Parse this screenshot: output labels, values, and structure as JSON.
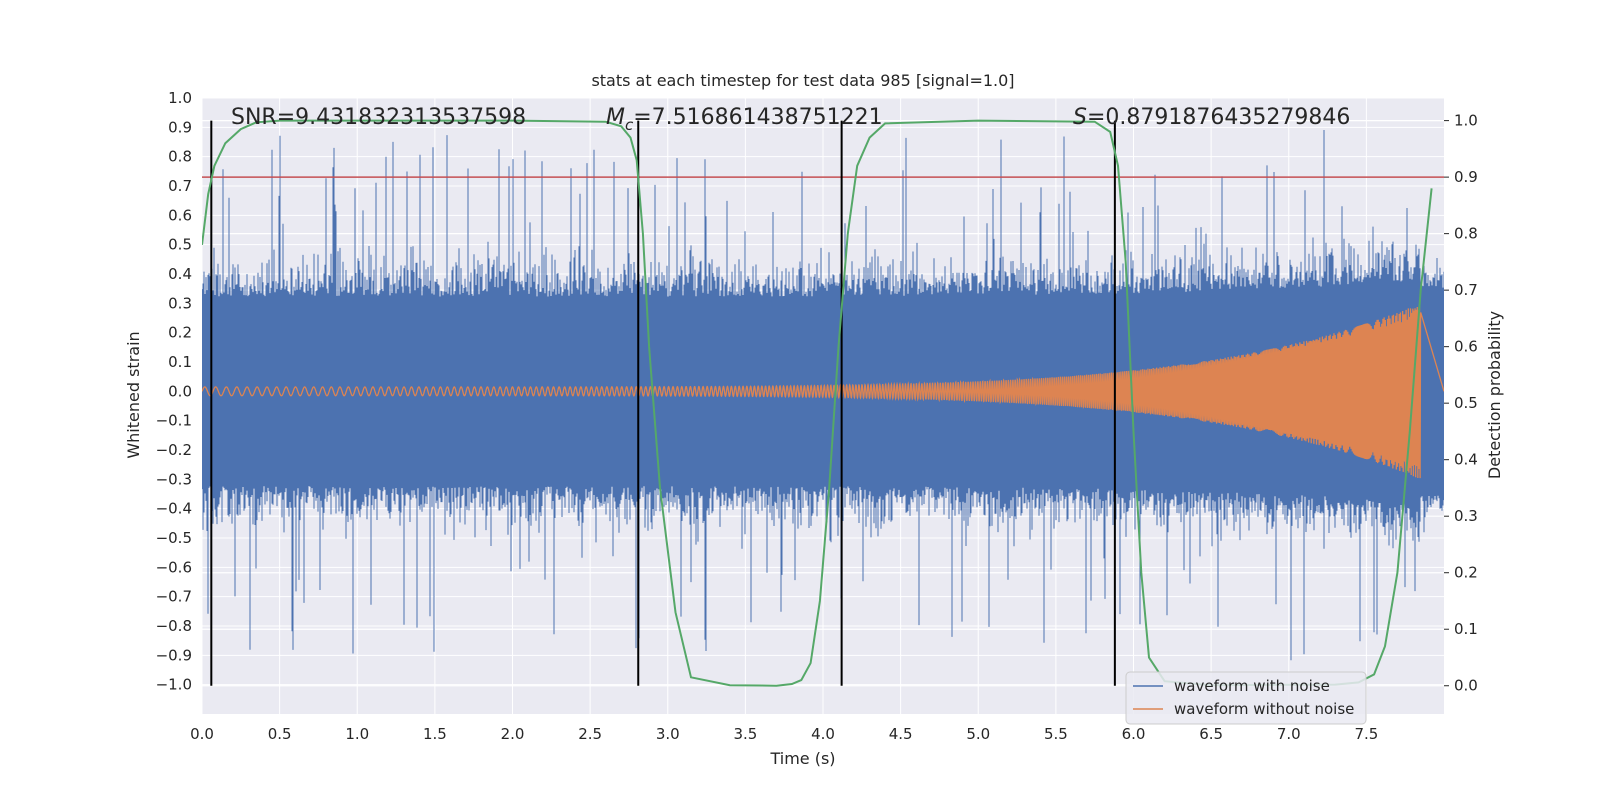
{
  "chart_data": {
    "type": "line",
    "title": "stats at each timestep for test data 985 [signal=1.0]",
    "xlabel": "Time (s)",
    "ylabel": "Whitened strain",
    "y2label": "Detection probability",
    "xlim": [
      0,
      8
    ],
    "ylim": [
      -1.1,
      1.0
    ],
    "y2lim": [
      -0.05,
      1.04
    ],
    "xticks": [
      "0.0",
      "0.5",
      "1.0",
      "1.5",
      "2.0",
      "2.5",
      "3.0",
      "3.5",
      "4.0",
      "4.5",
      "5.0",
      "5.5",
      "6.0",
      "6.5",
      "7.0",
      "7.5"
    ],
    "yticks": [
      "1.0",
      "0.9",
      "0.8",
      "0.7",
      "0.6",
      "0.5",
      "0.4",
      "0.3",
      "0.2",
      "0.1",
      "0.0",
      "−0.1",
      "−0.2",
      "−0.3",
      "−0.4",
      "−0.5",
      "−0.6",
      "−0.7",
      "−0.8",
      "−0.9",
      "−1.0"
    ],
    "y2ticks": [
      "1.0",
      "0.9",
      "0.8",
      "0.7",
      "0.6",
      "0.5",
      "0.4",
      "0.3",
      "0.2",
      "0.1",
      "0.0"
    ],
    "annotations": {
      "snr": "SNR=9.431832313537598",
      "mc_symbol": "M",
      "mc_sub": "c",
      "mc_value": "=7.516861438751221",
      "s_symbol": "S",
      "s_value": "=0.8791876435279846"
    },
    "threshold": 0.9,
    "vertical_lines": [
      0.06,
      2.81,
      4.12,
      5.88
    ],
    "series": [
      {
        "name": "waveform with noise",
        "color": "#4c72b0",
        "noise_envelope": 0.32,
        "spike_max": 0.92,
        "chirp_amp_end": 0.3,
        "duration": 7.85
      },
      {
        "name": "waveform without noise",
        "color": "#dd8452",
        "amp_start": 0.015,
        "amp_end": 0.3,
        "duration": 7.85
      },
      {
        "name": "detection probability",
        "color": "#55a868",
        "x": [
          0.0,
          0.04,
          0.08,
          0.15,
          0.25,
          0.35,
          0.5,
          1.0,
          2.0,
          2.6,
          2.7,
          2.76,
          2.8,
          2.84,
          2.88,
          2.95,
          3.05,
          3.15,
          3.4,
          3.7,
          3.8,
          3.86,
          3.92,
          3.98,
          4.04,
          4.1,
          4.16,
          4.22,
          4.3,
          4.4,
          5.0,
          5.75,
          5.85,
          5.9,
          5.95,
          6.0,
          6.05,
          6.1,
          6.2,
          6.5,
          7.3,
          7.45,
          7.55,
          7.62,
          7.7,
          7.78,
          7.85,
          7.92
        ],
        "y": [
          0.78,
          0.87,
          0.92,
          0.96,
          0.985,
          0.997,
          1.0,
          1.0,
          1.0,
          0.998,
          0.99,
          0.97,
          0.93,
          0.8,
          0.6,
          0.35,
          0.13,
          0.015,
          0.001,
          0.0,
          0.003,
          0.01,
          0.04,
          0.15,
          0.35,
          0.6,
          0.8,
          0.92,
          0.97,
          0.995,
          1.0,
          0.998,
          0.98,
          0.92,
          0.75,
          0.45,
          0.2,
          0.05,
          0.008,
          0.001,
          0.002,
          0.006,
          0.02,
          0.07,
          0.2,
          0.45,
          0.7,
          0.88
        ]
      }
    ],
    "legend": [
      "waveform with noise",
      "waveform without noise"
    ],
    "legend_position": "lower-right",
    "colors": {
      "threshold": "#c44e52",
      "vlines": "#000000",
      "grid": "#ffffff",
      "plot_bg": "#eaeaf2"
    }
  }
}
